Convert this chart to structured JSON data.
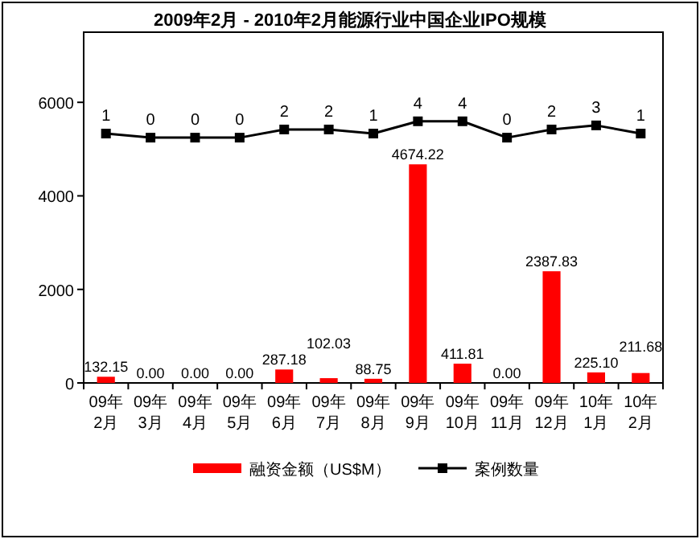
{
  "chart_data": {
    "type": "bar",
    "title": "2009年2月 - 2010年2月能源行业中国企业IPO规模",
    "categories": [
      "09年2月",
      "09年3月",
      "09年4月",
      "09年5月",
      "09年6月",
      "09年7月",
      "09年8月",
      "09年9月",
      "09年10月",
      "09年11月",
      "09年12月",
      "10年1月",
      "10年2月"
    ],
    "series": [
      {
        "name": "融资金额（US$M）",
        "color": "#ff0000",
        "values": [
          132.15,
          0,
          0,
          0,
          287.18,
          102.03,
          88.75,
          4674.22,
          411.81,
          0,
          2387.83,
          225.1,
          211.68
        ],
        "value_labels": [
          "132.15",
          "0.00",
          "0.00",
          "0.00",
          "287.18",
          "102.03",
          "88.75",
          "4674.22",
          "411.81",
          "0.00",
          "2387.83",
          "225.10",
          "211.68"
        ]
      },
      {
        "name": "案例数量",
        "type": "line",
        "axis": "y2",
        "color": "#000000",
        "marker": "square",
        "values": [
          1,
          0,
          0,
          0,
          2,
          2,
          1,
          4,
          4,
          0,
          2,
          3,
          1
        ],
        "value_labels": [
          "1",
          "0",
          "0",
          "0",
          "2",
          "2",
          "1",
          "4",
          "4",
          "0",
          "2",
          "3",
          "1"
        ]
      }
    ],
    "ylim": [
      0,
      7500
    ],
    "yticks": [
      0,
      2000,
      4000,
      6000
    ],
    "y2lim": [
      -60,
      25.8
    ],
    "legend": "bottom",
    "grid": false
  }
}
